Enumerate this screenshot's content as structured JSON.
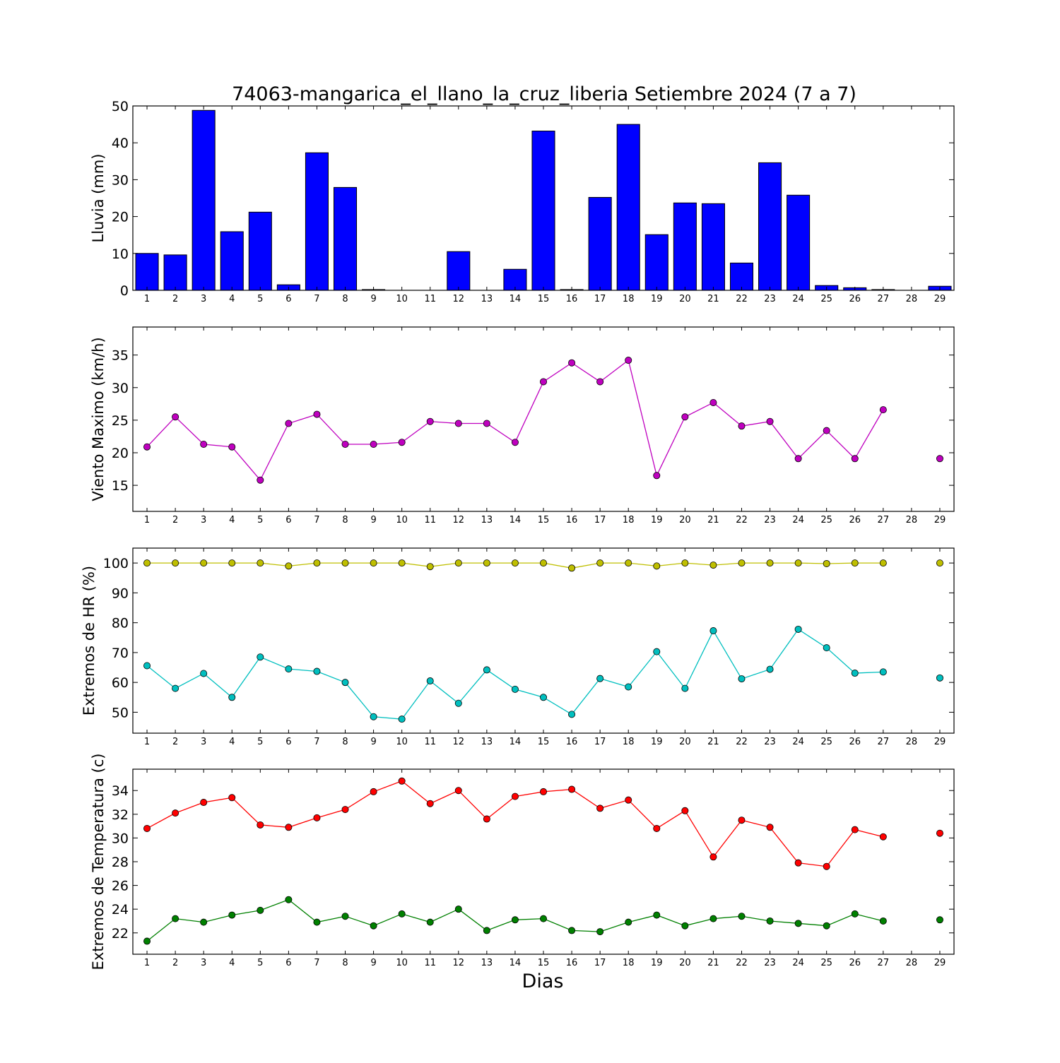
{
  "title": "74063-mangarica_el_llano_la_cruz_liberia Setiembre 2024  (7 a 7)",
  "chart_data": [
    {
      "type": "bar",
      "title": "74063-mangarica_el_llano_la_cruz_liberia Setiembre 2024  (7 a 7)",
      "ylabel": "Lluvia (mm)",
      "xlabel": "",
      "categories": [
        "1",
        "2",
        "3",
        "4",
        "5",
        "6",
        "7",
        "8",
        "9",
        "10",
        "11",
        "12",
        "13",
        "14",
        "15",
        "16",
        "17",
        "18",
        "19",
        "20",
        "21",
        "22",
        "23",
        "24",
        "25",
        "26",
        "27",
        "28",
        "29"
      ],
      "values": [
        10.0,
        9.6,
        48.8,
        15.9,
        21.2,
        1.5,
        37.3,
        27.9,
        0.2,
        0,
        0,
        10.5,
        0,
        5.7,
        43.2,
        0.2,
        25.2,
        45.0,
        15.1,
        23.7,
        23.5,
        7.4,
        34.6,
        25.8,
        1.3,
        0.7,
        0.2,
        0,
        1.1
      ],
      "ylim": [
        0,
        50
      ],
      "yticks": [
        0,
        10,
        20,
        30,
        40,
        50
      ],
      "grid": false,
      "color": "#0000ff"
    },
    {
      "type": "line",
      "ylabel": "Viento Maximo (km/h)",
      "xlabel": "",
      "x": [
        "1",
        "2",
        "3",
        "4",
        "5",
        "6",
        "7",
        "8",
        "9",
        "10",
        "11",
        "12",
        "13",
        "14",
        "15",
        "16",
        "17",
        "18",
        "19",
        "20",
        "21",
        "22",
        "23",
        "24",
        "25",
        "26",
        "27",
        "28",
        "29"
      ],
      "ylim": [
        11,
        39.3
      ],
      "yticks": [
        15,
        20,
        25,
        30,
        35
      ],
      "grid": false,
      "series": [
        {
          "color": "#bf00bf",
          "values": [
            20.9,
            25.5,
            21.3,
            20.9,
            15.8,
            24.5,
            25.9,
            21.3,
            21.3,
            21.6,
            24.8,
            24.5,
            24.5,
            21.6,
            30.9,
            33.8,
            30.9,
            34.2,
            16.5,
            25.5,
            27.7,
            24.1,
            24.8,
            19.1,
            23.4,
            19.1,
            26.6,
            null,
            19.1
          ]
        }
      ]
    },
    {
      "type": "line",
      "ylabel": "Extremos de HR (%)",
      "xlabel": "",
      "x": [
        "1",
        "2",
        "3",
        "4",
        "5",
        "6",
        "7",
        "8",
        "9",
        "10",
        "11",
        "12",
        "13",
        "14",
        "15",
        "16",
        "17",
        "18",
        "19",
        "20",
        "21",
        "22",
        "23",
        "24",
        "25",
        "26",
        "27",
        "28",
        "29"
      ],
      "ylim": [
        43,
        105
      ],
      "yticks": [
        50,
        60,
        70,
        80,
        90,
        100
      ],
      "grid": false,
      "series": [
        {
          "color": "#bfbf00",
          "values": [
            100,
            100,
            100,
            100,
            100,
            99,
            100,
            100,
            100,
            100,
            98.8,
            100,
            100,
            100,
            100,
            98.3,
            100,
            100,
            99,
            100,
            99.3,
            100,
            100,
            100,
            99.8,
            100,
            100,
            null,
            100
          ]
        },
        {
          "color": "#00bfbf",
          "values": [
            65.6,
            58,
            63,
            55,
            68.5,
            64.5,
            63.7,
            60,
            48.5,
            47.7,
            60.5,
            53,
            64.2,
            57.7,
            55,
            49.3,
            61.3,
            58.5,
            70.3,
            58,
            77.3,
            61.2,
            64.4,
            77.8,
            71.6,
            63.1,
            63.5,
            null,
            61.5
          ]
        }
      ]
    },
    {
      "type": "line",
      "ylabel": "Extremos de Temperatura (c)",
      "xlabel": "Dias",
      "x": [
        "1",
        "2",
        "3",
        "4",
        "5",
        "6",
        "7",
        "8",
        "9",
        "10",
        "11",
        "12",
        "13",
        "14",
        "15",
        "16",
        "17",
        "18",
        "19",
        "20",
        "21",
        "22",
        "23",
        "24",
        "25",
        "26",
        "27",
        "28",
        "29"
      ],
      "ylim": [
        20.2,
        35.8
      ],
      "yticks": [
        22,
        24,
        26,
        28,
        30,
        32,
        34
      ],
      "grid": false,
      "series": [
        {
          "color": "#ff0000",
          "values": [
            30.8,
            32.1,
            33.0,
            33.4,
            31.1,
            30.9,
            31.7,
            32.4,
            33.9,
            34.8,
            32.9,
            34.0,
            31.6,
            33.5,
            33.9,
            34.1,
            32.5,
            33.2,
            30.8,
            32.3,
            28.4,
            31.5,
            30.9,
            27.9,
            27.6,
            30.7,
            30.1,
            null,
            30.4
          ]
        },
        {
          "color": "#008000",
          "values": [
            21.3,
            23.2,
            22.9,
            23.5,
            23.9,
            24.8,
            22.9,
            23.4,
            22.6,
            23.6,
            22.9,
            24.0,
            22.2,
            23.1,
            23.2,
            22.2,
            22.1,
            22.9,
            23.5,
            22.6,
            23.2,
            23.4,
            23.0,
            22.8,
            22.6,
            23.6,
            23.0,
            null,
            23.1
          ]
        }
      ]
    }
  ]
}
